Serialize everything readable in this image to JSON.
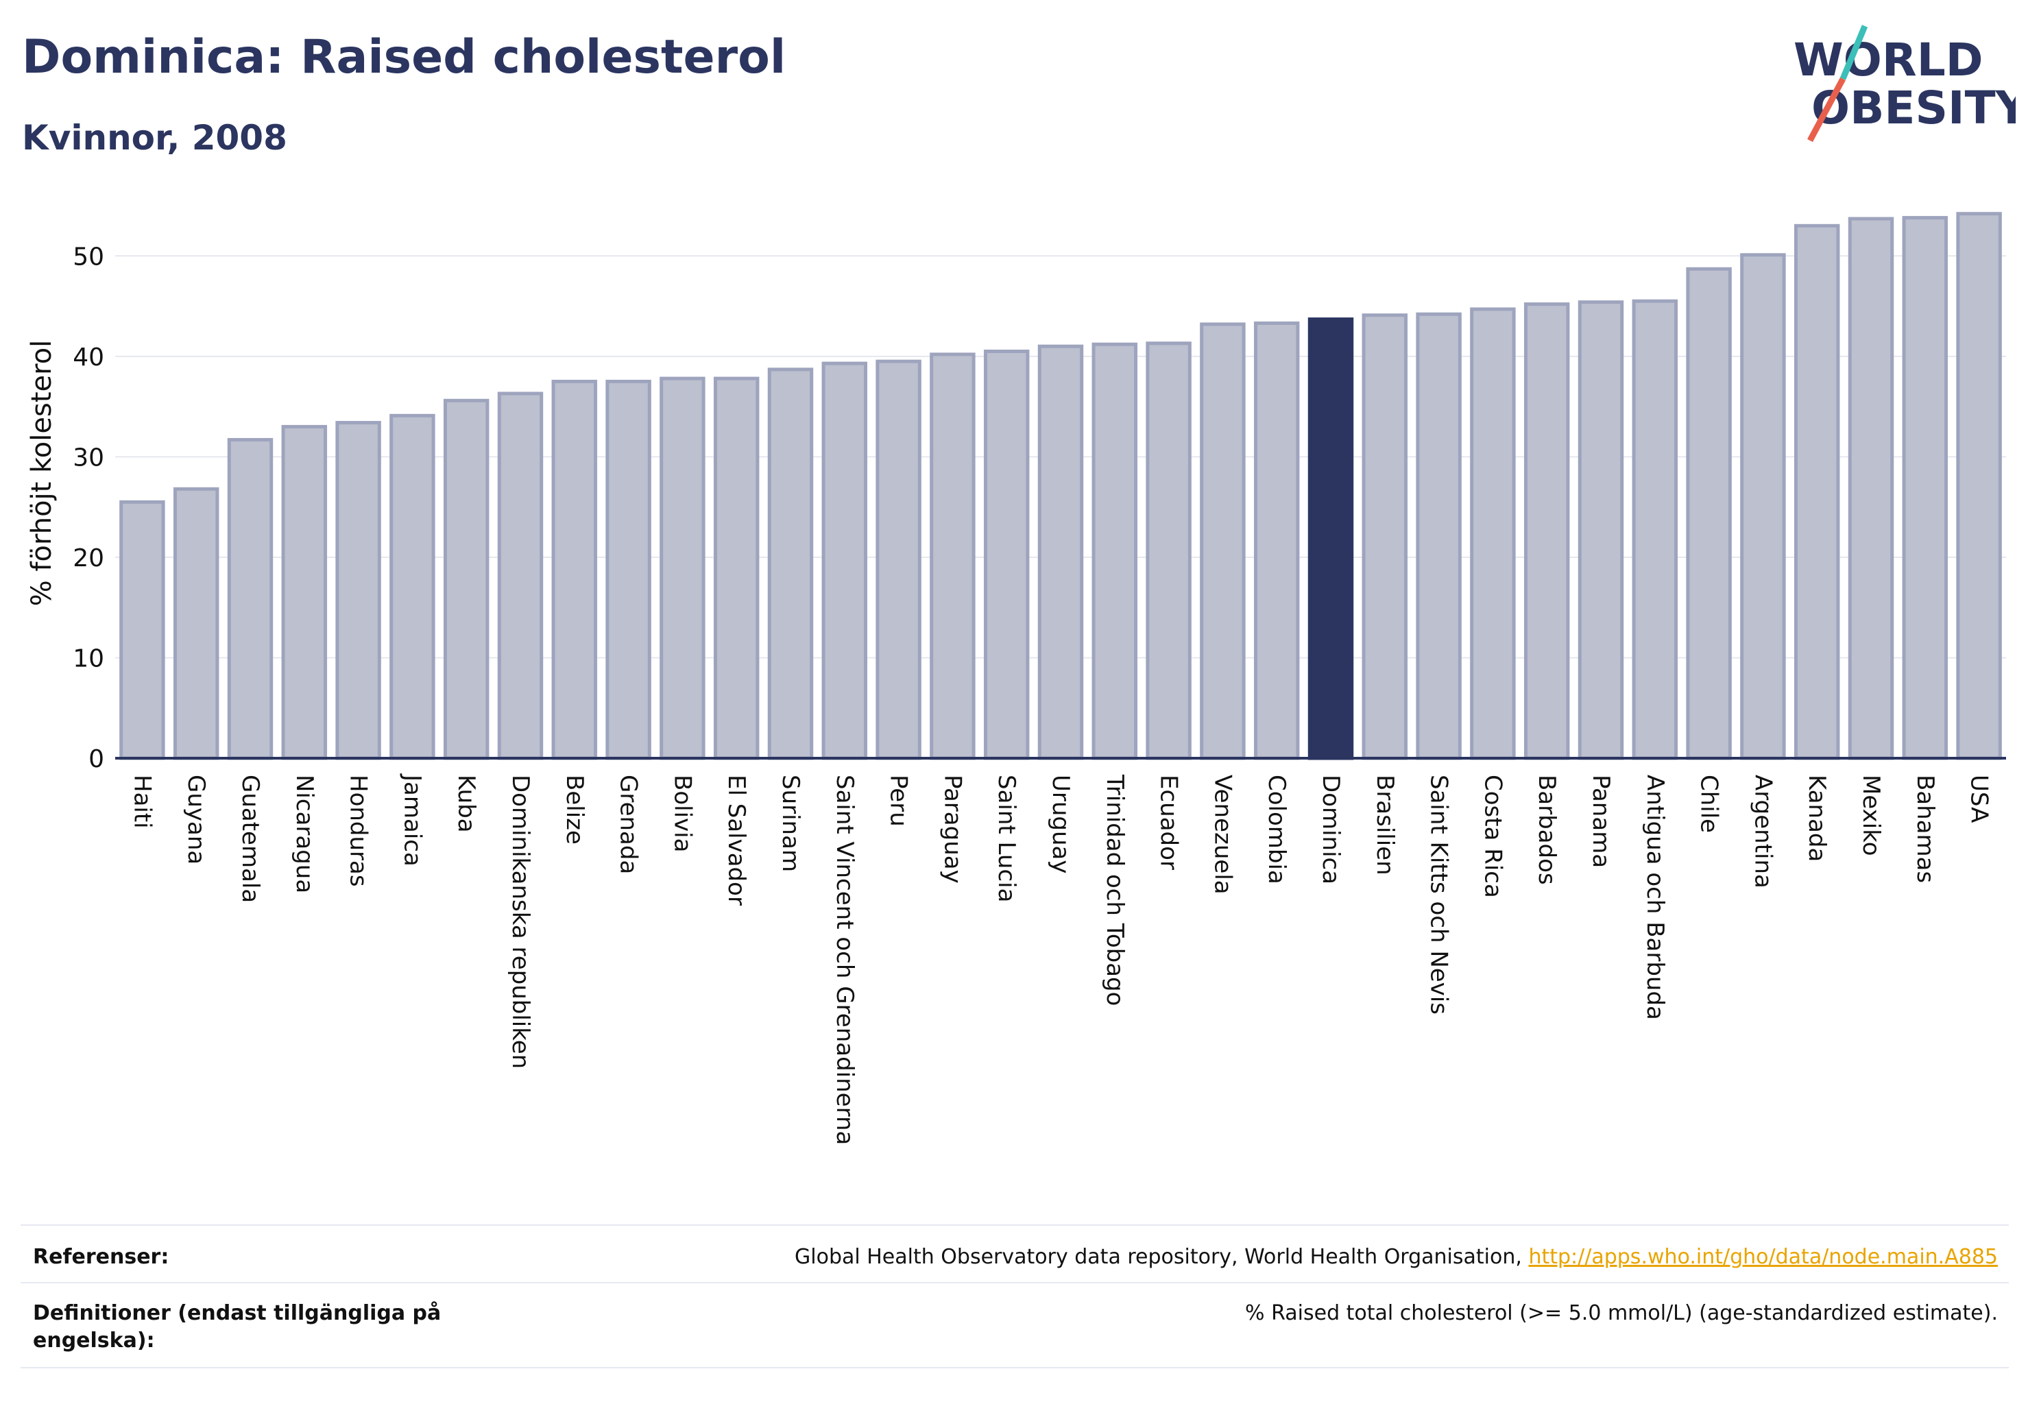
{
  "header": {
    "title": "Dominica: Raised cholesterol",
    "subtitle": "Kvinnor, 2008"
  },
  "logo": {
    "line1": "WORLD",
    "line2": "OBESITY",
    "accent_teal": "#3bbfb8",
    "accent_red": "#e8604c",
    "text_color": "#2b3560"
  },
  "colors": {
    "bar_default": "#bcc0cf",
    "bar_border": "#9ea4bd",
    "bar_highlight": "#2b3560",
    "axis": "#2b3560",
    "grid": "#e6e8ef"
  },
  "chart_data": {
    "type": "bar",
    "title": "Dominica: Raised cholesterol",
    "subtitle": "Kvinnor, 2008",
    "xlabel": "",
    "ylabel": "% förhöjt kolesterol",
    "ylim": [
      0,
      55
    ],
    "yticks": [
      0,
      10,
      20,
      30,
      40,
      50
    ],
    "grid": true,
    "highlight": "Dominica",
    "categories": [
      "Haiti",
      "Guyana",
      "Guatemala",
      "Nicaragua",
      "Honduras",
      "Jamaica",
      "Kuba",
      "Dominikanska republiken",
      "Belize",
      "Grenada",
      "Bolivia",
      "El Salvador",
      "Surinam",
      "Saint Vincent och Grenadinerna",
      "Peru",
      "Paraguay",
      "Saint Lucia",
      "Uruguay",
      "Trinidad och Tobago",
      "Ecuador",
      "Venezuela",
      "Colombia",
      "Dominica",
      "Brasilien",
      "Saint Kitts och Nevis",
      "Costa Rica",
      "Barbados",
      "Panama",
      "Antigua och Barbuda",
      "Chile",
      "Argentina",
      "Kanada",
      "Mexiko",
      "Bahamas",
      "USA"
    ],
    "values": [
      25.5,
      26.8,
      31.7,
      33.0,
      33.4,
      34.1,
      35.6,
      36.3,
      37.5,
      37.5,
      37.8,
      37.8,
      38.7,
      39.3,
      39.5,
      40.2,
      40.5,
      41.0,
      41.2,
      41.3,
      43.2,
      43.3,
      43.7,
      44.1,
      44.2,
      44.7,
      45.2,
      45.4,
      45.5,
      48.7,
      50.1,
      53.0,
      53.7,
      53.8,
      54.2
    ]
  },
  "footer": {
    "references_label": "Referenser:",
    "references_text": "Global Health Observatory data repository, World Health Organisation, ",
    "references_link": "http://apps.who.int/gho/data/node.main.A885",
    "definitions_label": "Definitioner (endast tillgängliga på engelska):",
    "definitions_text": "% Raised total cholesterol (>= 5.0 mmol/L) (age-standardized estimate)."
  }
}
